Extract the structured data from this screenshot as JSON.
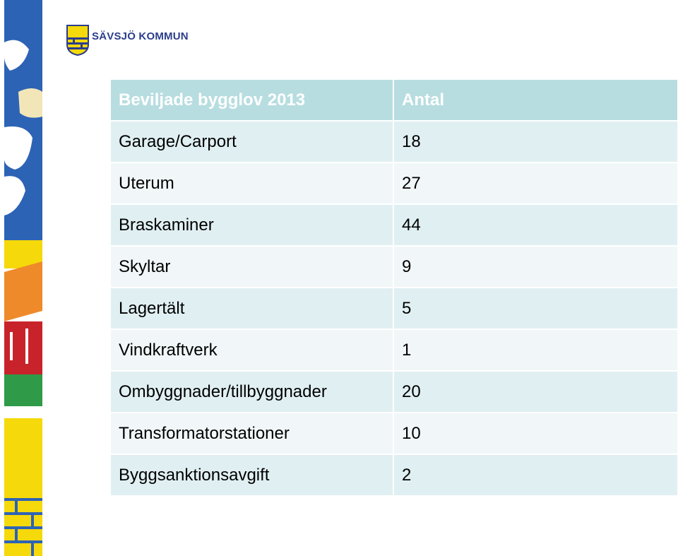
{
  "logo": {
    "text": "SÄVSJÖ KOMMUN"
  },
  "colors": {
    "header_bg": "#b7dde0",
    "row_dark": "#e0eff2",
    "row_light": "#f1f7f9",
    "logo_blue": "#2b3d8c",
    "logo_yellow": "#f5d90a"
  },
  "table": {
    "headers": [
      "Beviljade bygglov 2013",
      "Antal"
    ],
    "rows": [
      {
        "label": "Garage/Carport",
        "value": "18"
      },
      {
        "label": "Uterum",
        "value": "27"
      },
      {
        "label": "Braskaminer",
        "value": "44"
      },
      {
        "label": "Skyltar",
        "value": "9"
      },
      {
        "label": "Lagertält",
        "value": "5"
      },
      {
        "label": "Vindkraftverk",
        "value": "1"
      },
      {
        "label": "Ombyggnader/tillbyggnader",
        "value": "20"
      },
      {
        "label": "Transformatorstationer",
        "value": "10"
      },
      {
        "label": "Byggsanktionsavgift",
        "value": "2"
      }
    ]
  }
}
